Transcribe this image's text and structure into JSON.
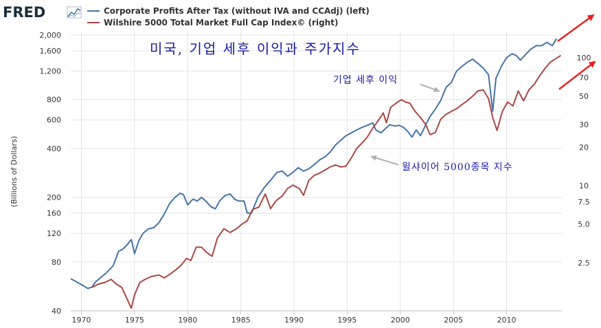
{
  "brand": {
    "name": "FRED",
    "logo_icon": "line-chart-icon"
  },
  "chart_data": {
    "type": "line",
    "title": "미국, 기업 세후 이익과 주가지수",
    "ylabel": "(Billions of Dollars)",
    "y_scale": "log",
    "y2_scale": "log",
    "ylim": [
      40,
      2100
    ],
    "y2lim": [
      1.05,
      160
    ],
    "xlim": [
      1969,
      2015.2
    ],
    "x_ticks": [
      1970,
      1975,
      1980,
      1985,
      1990,
      1995,
      2000,
      2005,
      2010
    ],
    "y_ticks": [
      40,
      80,
      120,
      160,
      200,
      400,
      600,
      800,
      1200,
      1600,
      2000
    ],
    "y_tick_labels": [
      "40",
      "80",
      "120",
      "160",
      "200",
      "400",
      "600",
      "800",
      "1,200",
      "1,600",
      "2,000"
    ],
    "y2_ticks": [
      2.5,
      5.0,
      7.5,
      10,
      20,
      30,
      50,
      70,
      100
    ],
    "y2_tick_labels": [
      "2.5",
      "5.0",
      "7.5",
      "10",
      "20",
      "30",
      "50",
      "70",
      "100"
    ],
    "grid": true,
    "legend_position": "top",
    "series": [
      {
        "name": "Corporate Profits After Tax (without IVA and CCAdj) (left)",
        "axis": "left",
        "color": "#4572a7",
        "points": [
          [
            1969.0,
            63
          ],
          [
            1969.6,
            60
          ],
          [
            1970.2,
            57
          ],
          [
            1970.6,
            55
          ],
          [
            1971.0,
            56
          ],
          [
            1971.3,
            60
          ],
          [
            1971.8,
            64
          ],
          [
            1972.4,
            69
          ],
          [
            1973.0,
            76
          ],
          [
            1973.5,
            93
          ],
          [
            1973.9,
            96
          ],
          [
            1974.3,
            102
          ],
          [
            1974.7,
            110
          ],
          [
            1975.0,
            90
          ],
          [
            1975.4,
            108
          ],
          [
            1975.8,
            120
          ],
          [
            1976.3,
            128
          ],
          [
            1976.8,
            130
          ],
          [
            1977.3,
            140
          ],
          [
            1977.8,
            158
          ],
          [
            1978.3,
            183
          ],
          [
            1978.8,
            200
          ],
          [
            1979.3,
            212
          ],
          [
            1979.6,
            208
          ],
          [
            1980.0,
            180
          ],
          [
            1980.5,
            195
          ],
          [
            1980.9,
            190
          ],
          [
            1981.3,
            200
          ],
          [
            1981.7,
            190
          ],
          [
            1982.2,
            175
          ],
          [
            1982.6,
            170
          ],
          [
            1983.0,
            190
          ],
          [
            1983.5,
            205
          ],
          [
            1984.0,
            210
          ],
          [
            1984.4,
            195
          ],
          [
            1984.8,
            190
          ],
          [
            1985.3,
            190
          ],
          [
            1985.6,
            160
          ],
          [
            1986.0,
            160
          ],
          [
            1986.6,
            200
          ],
          [
            1987.2,
            230
          ],
          [
            1987.8,
            255
          ],
          [
            1988.4,
            285
          ],
          [
            1988.9,
            290
          ],
          [
            1989.4,
            270
          ],
          [
            1989.9,
            285
          ],
          [
            1990.4,
            305
          ],
          [
            1990.9,
            290
          ],
          [
            1991.4,
            300
          ],
          [
            1991.9,
            318
          ],
          [
            1992.4,
            340
          ],
          [
            1992.9,
            355
          ],
          [
            1993.4,
            380
          ],
          [
            1993.9,
            420
          ],
          [
            1994.4,
            450
          ],
          [
            1994.9,
            480
          ],
          [
            1995.4,
            500
          ],
          [
            1995.9,
            520
          ],
          [
            1996.4,
            540
          ],
          [
            1996.9,
            555
          ],
          [
            1997.4,
            575
          ],
          [
            1997.7,
            520
          ],
          [
            1998.2,
            500
          ],
          [
            1998.6,
            530
          ],
          [
            1999.0,
            560
          ],
          [
            1999.5,
            550
          ],
          [
            1999.9,
            555
          ],
          [
            2000.3,
            540
          ],
          [
            2000.7,
            510
          ],
          [
            2001.1,
            470
          ],
          [
            2001.5,
            520
          ],
          [
            2001.9,
            480
          ],
          [
            2002.4,
            560
          ],
          [
            2002.8,
            630
          ],
          [
            2003.3,
            700
          ],
          [
            2003.8,
            790
          ],
          [
            2004.3,
            950
          ],
          [
            2004.8,
            1020
          ],
          [
            2005.3,
            1200
          ],
          [
            2005.8,
            1280
          ],
          [
            2006.3,
            1360
          ],
          [
            2006.8,
            1420
          ],
          [
            2007.3,
            1340
          ],
          [
            2007.8,
            1250
          ],
          [
            2008.3,
            1140
          ],
          [
            2008.7,
            680
          ],
          [
            2009.0,
            1080
          ],
          [
            2009.5,
            1280
          ],
          [
            2010.0,
            1450
          ],
          [
            2010.5,
            1530
          ],
          [
            2010.9,
            1500
          ],
          [
            2011.3,
            1400
          ],
          [
            2011.8,
            1520
          ],
          [
            2012.3,
            1640
          ],
          [
            2012.8,
            1720
          ],
          [
            2013.3,
            1720
          ],
          [
            2013.8,
            1800
          ],
          [
            2014.3,
            1720
          ],
          [
            2014.7,
            1900
          ]
        ]
      },
      {
        "name": "Wilshire 5000 Total Market Full Cap Index© (right)",
        "axis": "right",
        "color": "#aa4643",
        "points": [
          [
            1971.0,
            1.6
          ],
          [
            1971.6,
            1.7
          ],
          [
            1972.2,
            1.75
          ],
          [
            1972.8,
            1.85
          ],
          [
            1973.3,
            1.7
          ],
          [
            1973.8,
            1.6
          ],
          [
            1974.3,
            1.3
          ],
          [
            1974.7,
            1.1
          ],
          [
            1975.0,
            1.4
          ],
          [
            1975.5,
            1.75
          ],
          [
            1976.0,
            1.85
          ],
          [
            1976.6,
            1.95
          ],
          [
            1977.3,
            2.0
          ],
          [
            1977.8,
            1.9
          ],
          [
            1978.4,
            2.05
          ],
          [
            1978.9,
            2.2
          ],
          [
            1979.4,
            2.4
          ],
          [
            1979.9,
            2.7
          ],
          [
            1980.3,
            2.6
          ],
          [
            1980.8,
            3.3
          ],
          [
            1981.3,
            3.3
          ],
          [
            1981.8,
            3.0
          ],
          [
            1982.3,
            2.8
          ],
          [
            1982.8,
            3.9
          ],
          [
            1983.4,
            4.6
          ],
          [
            1984.0,
            4.3
          ],
          [
            1984.6,
            4.6
          ],
          [
            1985.1,
            5.0
          ],
          [
            1985.6,
            5.3
          ],
          [
            1986.1,
            6.5
          ],
          [
            1986.7,
            6.8
          ],
          [
            1987.3,
            8.6
          ],
          [
            1987.8,
            6.6
          ],
          [
            1988.3,
            7.6
          ],
          [
            1988.9,
            8.3
          ],
          [
            1989.4,
            9.5
          ],
          [
            1989.9,
            10.1
          ],
          [
            1990.5,
            9.5
          ],
          [
            1990.9,
            8.4
          ],
          [
            1991.4,
            11.0
          ],
          [
            1991.9,
            12.0
          ],
          [
            1992.4,
            12.5
          ],
          [
            1992.9,
            13.2
          ],
          [
            1993.4,
            14.0
          ],
          [
            1993.9,
            14.5
          ],
          [
            1994.4,
            14.0
          ],
          [
            1994.9,
            14.2
          ],
          [
            1995.4,
            16.5
          ],
          [
            1995.9,
            19.5
          ],
          [
            1996.4,
            21.5
          ],
          [
            1996.9,
            24.0
          ],
          [
            1997.4,
            28.0
          ],
          [
            1997.9,
            32.0
          ],
          [
            1998.4,
            37.0
          ],
          [
            1998.7,
            31.0
          ],
          [
            1999.1,
            41.0
          ],
          [
            1999.6,
            44.0
          ],
          [
            2000.1,
            47.0
          ],
          [
            2000.5,
            45.0
          ],
          [
            2000.9,
            44.0
          ],
          [
            2001.4,
            38.0
          ],
          [
            2001.9,
            34.0
          ],
          [
            2002.4,
            30.0
          ],
          [
            2002.8,
            25.0
          ],
          [
            2003.3,
            26.0
          ],
          [
            2003.8,
            33.0
          ],
          [
            2004.3,
            36.0
          ],
          [
            2004.8,
            38.0
          ],
          [
            2005.3,
            40.0
          ],
          [
            2005.8,
            43.0
          ],
          [
            2006.3,
            46.0
          ],
          [
            2006.8,
            50.0
          ],
          [
            2007.3,
            55.0
          ],
          [
            2007.8,
            56.0
          ],
          [
            2008.3,
            48.0
          ],
          [
            2008.7,
            34.0
          ],
          [
            2009.1,
            27.0
          ],
          [
            2009.6,
            38.0
          ],
          [
            2010.1,
            45.0
          ],
          [
            2010.6,
            42.0
          ],
          [
            2011.1,
            55.0
          ],
          [
            2011.6,
            46.0
          ],
          [
            2012.1,
            56.0
          ],
          [
            2012.6,
            62.0
          ],
          [
            2013.1,
            72.0
          ],
          [
            2013.6,
            82.0
          ],
          [
            2014.1,
            92.0
          ],
          [
            2014.6,
            98.0
          ],
          [
            2015.1,
            104.0
          ]
        ]
      }
    ],
    "annotations": [
      {
        "text": "기업 세후 이익",
        "target_x": 2003.9,
        "target_y": 880
      },
      {
        "text": "윌샤이어 5000종목 지수",
        "target_x": 1997.0,
        "target_y": 330
      }
    ]
  }
}
